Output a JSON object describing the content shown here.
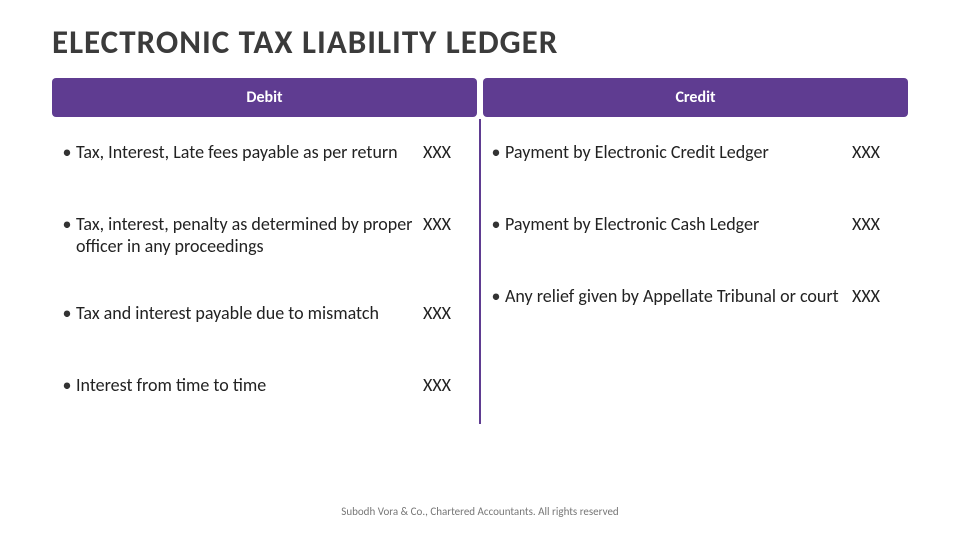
{
  "title": "ELECTRONIC TAX LIABILITY LEDGER",
  "headers": {
    "debit": "Debit",
    "credit": "Credit"
  },
  "colors": {
    "header_bg": "#5f3c91",
    "header_text": "#ffffff",
    "title_text": "#3b3b3b",
    "body_text": "#222222",
    "divider": "#5f3c91",
    "footer_text": "#777777",
    "background": "#ffffff"
  },
  "fonts": {
    "title_size_pt": 25,
    "header_size_pt": 12,
    "body_size_pt": 13,
    "footer_size_pt": 8
  },
  "debit_rows": [
    {
      "text": "Tax, Interest, Late fees payable as per return",
      "amount": "XXX"
    },
    {
      "text": "Tax, interest, penalty as determined by proper officer in any proceedings",
      "amount": "XXX"
    },
    {
      "text": "Tax and interest payable due to mismatch",
      "amount": "XXX"
    },
    {
      "text": "Interest from time to time",
      "amount": "XXX"
    }
  ],
  "credit_rows": [
    {
      "text": "Payment by Electronic Credit Ledger",
      "amount": "XXX"
    },
    {
      "text": "Payment by Electronic Cash Ledger",
      "amount": "XXX"
    },
    {
      "text": "Any relief given by Appellate Tribunal or court",
      "amount": "XXX"
    },
    {
      "text": "",
      "amount": ""
    }
  ],
  "footer": "Subodh Vora & Co., Chartered Accountants. All rights reserved"
}
